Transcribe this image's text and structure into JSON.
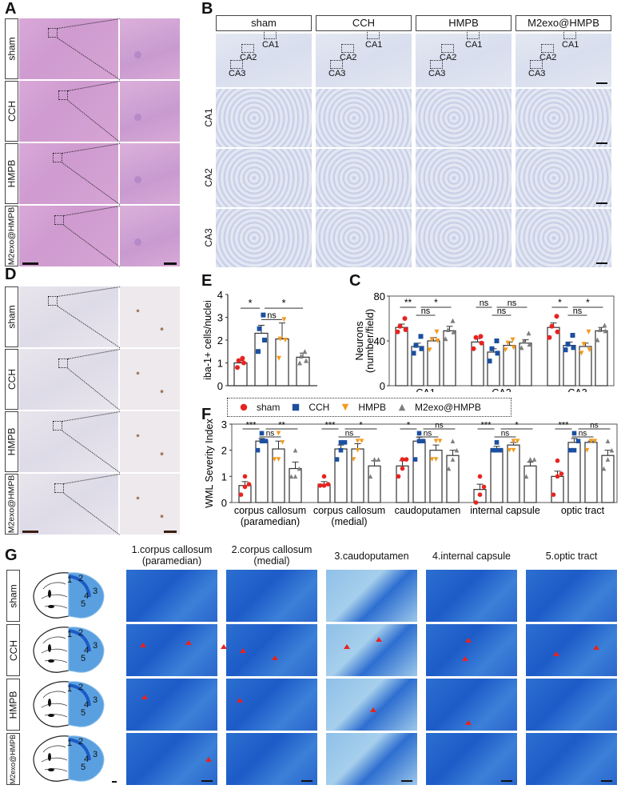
{
  "panels": {
    "A": {
      "letter": "A",
      "stain": "H&E",
      "rows": [
        "sham",
        "CCH",
        "HMPB",
        "M2exo@HMPB"
      ]
    },
    "B": {
      "letter": "B",
      "stain": "Nissl",
      "columns": [
        "sham",
        "CCH",
        "HMPB",
        "M2exo@HMPB"
      ],
      "region_rows": [
        "CA1",
        "CA2",
        "CA3"
      ],
      "overview_box_labels": [
        "CA1",
        "CA2",
        "CA3"
      ]
    },
    "D": {
      "letter": "D",
      "stain": "Iba-1 IHC",
      "rows": [
        "sham",
        "CCH",
        "HMPB",
        "M2exo@HMPB"
      ]
    },
    "E": {
      "letter": "E"
    },
    "C": {
      "letter": "C"
    },
    "F": {
      "letter": "F"
    },
    "G": {
      "letter": "G",
      "rows": [
        "sham",
        "CCH",
        "HMPB",
        "M2exo@HMPB"
      ],
      "columns": [
        "1.corpus callosum\n(paramedian)",
        "2.corpus callosum\n(medial)",
        "3.caudoputamen",
        "4.internal capsule",
        "5.optic tract"
      ],
      "column_lines": [
        [
          "1.corpus callosum",
          "(paramedian)"
        ],
        [
          "2.corpus callosum",
          "(medial)"
        ],
        [
          "3.caudoputamen",
          ""
        ],
        [
          "4.internal capsule",
          ""
        ],
        [
          "5.optic tract",
          ""
        ]
      ],
      "atlas_region_numbers": [
        "1",
        "2",
        "3",
        "4",
        "5"
      ]
    }
  },
  "legend": {
    "items": [
      {
        "label": "sham",
        "marker": "circle",
        "color": "#e8231f"
      },
      {
        "label": "CCH",
        "marker": "square",
        "color": "#1c4fa0"
      },
      {
        "label": "HMPB",
        "marker": "triangle-down",
        "color": "#f39a1e"
      },
      {
        "label": "M2exo@HMPB",
        "marker": "triangle-up",
        "color": "#7f7f7f"
      }
    ]
  },
  "chart_data": [
    {
      "panel": "E",
      "type": "bar",
      "title": "",
      "xlabel": "",
      "ylabel": "iba-1+ cells/nuclei",
      "ylim": [
        0,
        4
      ],
      "yticks": [
        0,
        1,
        2,
        3,
        4
      ],
      "categories": [
        "sham",
        "CCH",
        "HMPB",
        "M2exo@HMPB"
      ],
      "values": [
        1.0,
        2.3,
        2.05,
        1.25
      ],
      "errors": [
        0.1,
        0.35,
        0.7,
        0.18
      ],
      "points": [
        [
          0.8,
          1.0,
          1.1,
          1.2
        ],
        [
          1.5,
          2.0,
          2.5,
          3.1
        ],
        [
          1.2,
          2.0,
          2.05,
          2.9
        ],
        [
          1.0,
          1.1,
          1.3,
          1.5
        ]
      ],
      "significance": [
        {
          "pair": [
            "sham",
            "CCH"
          ],
          "label": "*"
        },
        {
          "pair": [
            "CCH",
            "HMPB"
          ],
          "label": "ns"
        },
        {
          "pair": [
            "CCH",
            "M2exo@HMPB"
          ],
          "label": "*"
        }
      ],
      "grid": false
    },
    {
      "panel": "C",
      "type": "bar",
      "title": "",
      "xlabel": "",
      "ylabel": "Neurons (number/field)",
      "ylim": [
        0,
        80
      ],
      "yticks": [
        0,
        40,
        80
      ],
      "categories": [
        "CA1",
        "CA2",
        "CA3"
      ],
      "series": [
        {
          "name": "sham",
          "values": [
            52,
            39,
            52
          ],
          "errors": [
            3,
            3,
            4
          ],
          "points": [
            [
              48,
              50,
              53,
              60
            ],
            [
              33,
              38,
              43,
              44
            ],
            [
              43,
              48,
              53,
              62
            ]
          ]
        },
        {
          "name": "CCH",
          "values": [
            35,
            30,
            36
          ],
          "errors": [
            3,
            3,
            3
          ],
          "points": [
            [
              29,
              33,
              36,
              44
            ],
            [
              22,
              29,
              33,
              40
            ],
            [
              32,
              34,
              37,
              45
            ]
          ]
        },
        {
          "name": "HMPB",
          "values": [
            40,
            36,
            35
          ],
          "errors": [
            3,
            3,
            3
          ],
          "points": [
            [
              32,
              40,
              41,
              48
            ],
            [
              32,
              34,
              38,
              41
            ],
            [
              29,
              32,
              37,
              48
            ]
          ]
        },
        {
          "name": "M2exo@HMPB",
          "values": [
            49,
            38,
            49
          ],
          "errors": [
            4,
            3,
            3
          ],
          "points": [
            [
              42,
              48,
              50,
              58
            ],
            [
              34,
              37,
              40,
              47
            ],
            [
              41,
              49,
              50,
              54
            ]
          ]
        }
      ],
      "significance": [
        {
          "group": "CA1",
          "pair": [
            "sham",
            "CCH"
          ],
          "label": "**"
        },
        {
          "group": "CA1",
          "pair": [
            "CCH",
            "HMPB"
          ],
          "label": "ns"
        },
        {
          "group": "CA1",
          "pair": [
            "CCH",
            "M2exo@HMPB"
          ],
          "label": "*"
        },
        {
          "group": "CA2",
          "pair": [
            "sham",
            "CCH"
          ],
          "label": "ns"
        },
        {
          "group": "CA2",
          "pair": [
            "CCH",
            "HMPB"
          ],
          "label": "ns"
        },
        {
          "group": "CA2",
          "pair": [
            "CCH",
            "M2exo@HMPB"
          ],
          "label": "ns"
        },
        {
          "group": "CA3",
          "pair": [
            "sham",
            "CCH"
          ],
          "label": "*"
        },
        {
          "group": "CA3",
          "pair": [
            "CCH",
            "HMPB"
          ],
          "label": "ns"
        },
        {
          "group": "CA3",
          "pair": [
            "CCH",
            "M2exo@HMPB"
          ],
          "label": "*"
        }
      ],
      "legend_position": "below (shared legend box)",
      "grid": false
    },
    {
      "panel": "F",
      "type": "bar",
      "title": "",
      "xlabel": "",
      "ylabel": "WML Severity Index",
      "ylim": [
        0,
        3
      ],
      "yticks": [
        0,
        1,
        2,
        3
      ],
      "categories": [
        "corpus callosum (paramedian)",
        "corpus callosum (medial)",
        "caudoputamen",
        "internal capsule",
        "optic tract"
      ],
      "category_lines": [
        [
          "corpus callosum",
          "(paramedian)"
        ],
        [
          "corpus callosum",
          "(medial)"
        ],
        [
          "caudoputamen",
          ""
        ],
        [
          "internal capsule",
          ""
        ],
        [
          "optic tract",
          ""
        ]
      ],
      "series": [
        {
          "name": "sham",
          "values": [
            0.65,
            0.7,
            1.4,
            0.5,
            1.0
          ],
          "errors": [
            0.15,
            0.1,
            0.2,
            0.2,
            0.2
          ],
          "points": [
            [
              0.3,
              0.6,
              0.7,
              1.0
            ],
            [
              0.65,
              0.65,
              0.7,
              1.0
            ],
            [
              1.0,
              1.3,
              1.65,
              1.65
            ],
            [
              0.0,
              0.3,
              0.6,
              1.0
            ],
            [
              0.3,
              1.0,
              1.1,
              1.6
            ]
          ]
        },
        {
          "name": "CCH",
          "values": [
            2.35,
            2.05,
            2.35,
            2.05,
            2.3
          ],
          "errors": [
            0.1,
            0.15,
            0.15,
            0.1,
            0.15
          ],
          "points": [
            [
              2.0,
              2.35,
              2.35,
              2.65
            ],
            [
              1.65,
              2.3,
              2.3,
              2.0
            ],
            [
              1.65,
              2.35,
              2.35,
              2.65
            ],
            [
              2.0,
              2.0,
              2.0,
              2.3
            ],
            [
              2.0,
              2.0,
              2.35,
              2.65
            ]
          ]
        },
        {
          "name": "HMPB",
          "values": [
            2.05,
            2.05,
            2.0,
            2.2,
            2.3
          ],
          "errors": [
            0.3,
            0.2,
            0.2,
            0.1,
            0.05
          ],
          "points": [
            [
              1.65,
              1.65,
              2.3,
              2.65
            ],
            [
              1.65,
              2.0,
              2.35,
              2.35
            ],
            [
              1.65,
              1.65,
              2.35,
              2.35
            ],
            [
              2.0,
              2.0,
              2.35,
              2.35
            ],
            [
              2.0,
              2.35,
              2.35,
              2.35
            ]
          ]
        },
        {
          "name": "M2exo@HMPB",
          "values": [
            1.3,
            1.4,
            1.8,
            1.4,
            1.8
          ],
          "errors": [
            0.25,
            0.2,
            0.2,
            0.15,
            0.2
          ],
          "points": [
            [
              1.0,
              1.0,
              1.3,
              2.0
            ],
            [
              1.0,
              1.65,
              1.65,
              1.65
            ],
            [
              1.3,
              1.65,
              2.0,
              2.35
            ],
            [
              1.0,
              1.65,
              1.65,
              1.65
            ],
            [
              1.3,
              1.65,
              2.0,
              2.35
            ]
          ]
        }
      ],
      "significance": [
        {
          "group": "corpus callosum (paramedian)",
          "pair": [
            "sham",
            "CCH"
          ],
          "label": "***"
        },
        {
          "group": "corpus callosum (paramedian)",
          "pair": [
            "CCH",
            "HMPB"
          ],
          "label": "ns"
        },
        {
          "group": "corpus callosum (paramedian)",
          "pair": [
            "CCH",
            "M2exo@HMPB"
          ],
          "label": "**"
        },
        {
          "group": "corpus callosum (medial)",
          "pair": [
            "sham",
            "CCH"
          ],
          "label": "***"
        },
        {
          "group": "corpus callosum (medial)",
          "pair": [
            "CCH",
            "HMPB"
          ],
          "label": "ns"
        },
        {
          "group": "corpus callosum (medial)",
          "pair": [
            "CCH",
            "M2exo@HMPB"
          ],
          "label": "*"
        },
        {
          "group": "caudoputamen",
          "pair": [
            "sham",
            "CCH"
          ],
          "label": "*"
        },
        {
          "group": "caudoputamen",
          "pair": [
            "CCH",
            "HMPB"
          ],
          "label": "ns"
        },
        {
          "group": "caudoputamen",
          "pair": [
            "CCH",
            "M2exo@HMPB"
          ],
          "label": "ns"
        },
        {
          "group": "internal capsule",
          "pair": [
            "sham",
            "CCH"
          ],
          "label": "***"
        },
        {
          "group": "internal capsule",
          "pair": [
            "CCH",
            "HMPB"
          ],
          "label": "ns"
        },
        {
          "group": "internal capsule",
          "pair": [
            "CCH",
            "M2exo@HMPB"
          ],
          "label": "*"
        },
        {
          "group": "optic tract",
          "pair": [
            "sham",
            "CCH"
          ],
          "label": "***"
        },
        {
          "group": "optic tract",
          "pair": [
            "CCH",
            "HMPB"
          ],
          "label": "ns"
        },
        {
          "group": "optic tract",
          "pair": [
            "CCH",
            "M2exo@HMPB"
          ],
          "label": "ns"
        }
      ],
      "legend_position": "top",
      "grid": false
    }
  ]
}
